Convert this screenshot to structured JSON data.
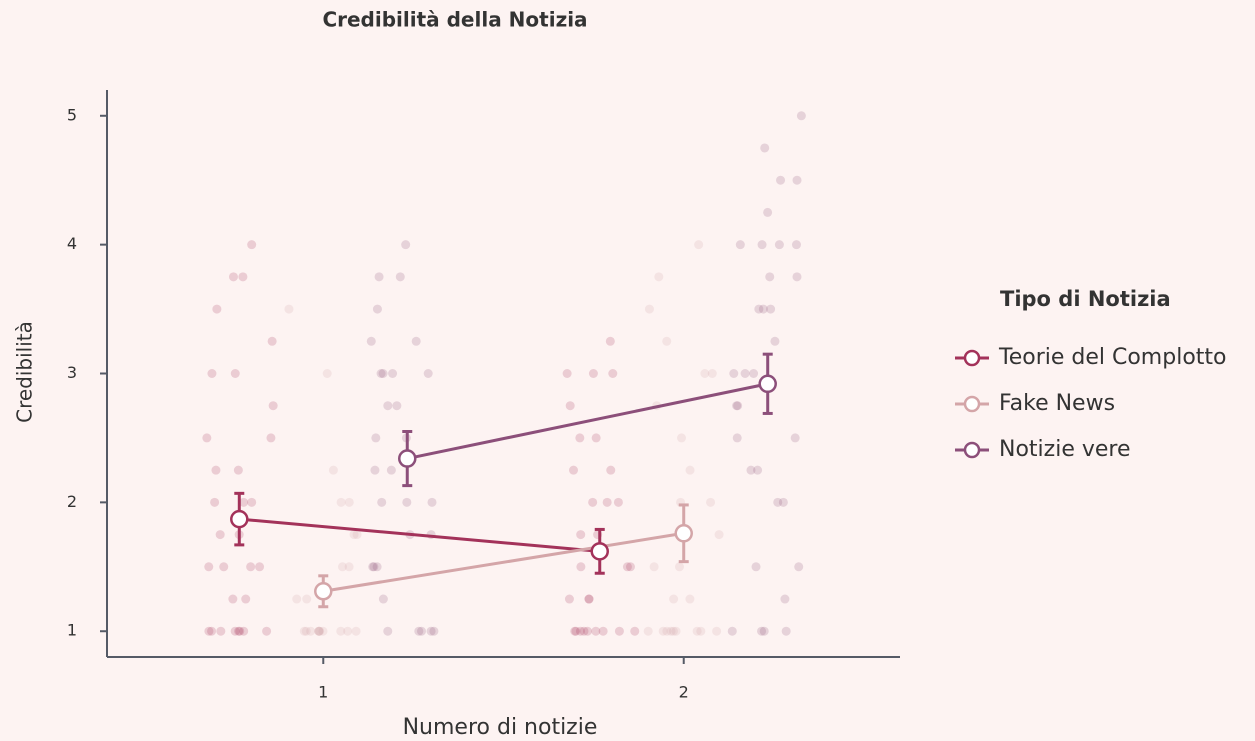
{
  "chart_data": {
    "type": "line",
    "title": "Credibilità della Notizia",
    "x_label": "Numero di notizie",
    "y_label": "Credibilità",
    "x": [
      1,
      2
    ],
    "xlim": [
      0.4,
      2.6
    ],
    "xticks": [
      1,
      2
    ],
    "ylim": [
      0.8,
      5.2
    ],
    "yticks": [
      1,
      2,
      3,
      4,
      5
    ],
    "legend_title": "Tipo di Notizia",
    "legend_position": "right",
    "series": [
      {
        "name": "Teorie del Complotto",
        "color": "#a3325a",
        "values": [
          1.87,
          1.62
        ],
        "errors": [
          0.2,
          0.17
        ],
        "raw": [
          [
            1,
            1,
            1,
            1,
            1,
            1,
            1,
            1,
            1.25,
            1.25,
            1.5,
            1.5,
            1.5,
            1.5,
            1.75,
            1.75,
            2,
            2,
            2,
            2.25,
            2.25,
            2.5,
            2.5,
            2.75,
            3,
            3,
            3.25,
            3.5,
            3.75,
            3.75,
            4
          ],
          [
            1,
            1,
            1,
            1,
            1,
            1,
            1,
            1,
            1,
            1.25,
            1.25,
            1.25,
            1.5,
            1.5,
            1.5,
            1.75,
            1.75,
            2,
            2,
            2,
            2.25,
            2.25,
            2.5,
            2.5,
            2.75,
            3,
            3,
            3,
            3.25
          ]
        ]
      },
      {
        "name": "Fake News",
        "color": "#d4a5a8",
        "values": [
          1.31,
          1.76
        ],
        "errors": [
          0.12,
          0.22
        ],
        "raw": [
          [
            1,
            1,
            1,
            1,
            1,
            1,
            1,
            1,
            1,
            1,
            1,
            1.25,
            1.25,
            1.5,
            1.5,
            1.75,
            1.75,
            2,
            2,
            2.25,
            3,
            3.5
          ],
          [
            1,
            1,
            1,
            1,
            1,
            1,
            1,
            1,
            1,
            1.25,
            1.25,
            1.5,
            1.5,
            1.75,
            2,
            2,
            2.25,
            2.5,
            2.75,
            3,
            3,
            3.25,
            3.5,
            3.75,
            4
          ]
        ]
      },
      {
        "name": "Notizie vere",
        "color": "#8c4f7a",
        "values": [
          2.34,
          2.92
        ],
        "errors": [
          0.21,
          0.23
        ],
        "raw": [
          [
            1,
            1,
            1,
            1,
            1,
            1.25,
            1.5,
            1.5,
            1.5,
            1.75,
            1.75,
            2,
            2,
            2,
            2.25,
            2.25,
            2.5,
            2.5,
            2.75,
            2.75,
            3,
            3,
            3,
            3,
            3.25,
            3.25,
            3.5,
            3.75,
            3.75,
            4
          ],
          [
            1,
            1,
            1,
            1,
            1.25,
            1.5,
            1.5,
            2,
            2,
            2.25,
            2.25,
            2.5,
            2.5,
            2.75,
            2.75,
            3,
            3,
            3,
            3.25,
            3.5,
            3.5,
            3.5,
            3.75,
            3.75,
            4,
            4,
            4,
            4,
            4.25,
            4.5,
            4.5,
            4.75,
            5
          ]
        ]
      }
    ]
  }
}
